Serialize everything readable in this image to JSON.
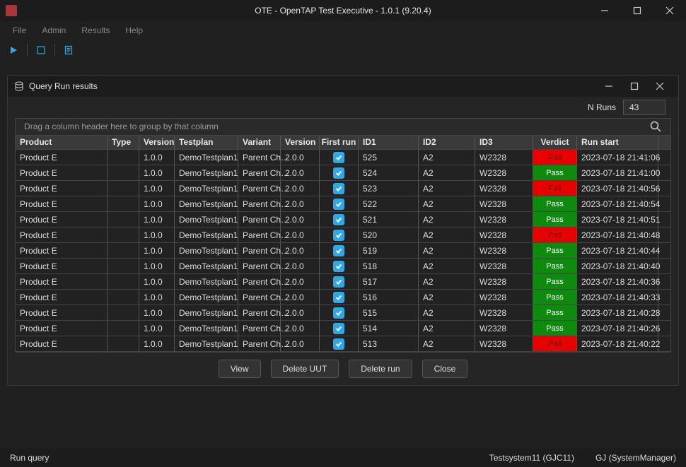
{
  "window": {
    "title": "OTE - OpenTAP Test Executive - 1.0.1  (9.20.4)"
  },
  "menus": [
    "File",
    "Admin",
    "Results",
    "Help"
  ],
  "inner": {
    "title": "Query Run results",
    "nruns_label": "N Runs",
    "nruns_value": "43",
    "group_hint": "Drag a column header here to group by that column"
  },
  "columns": [
    "Product",
    "Type",
    "Version",
    "Testplan",
    "Variant",
    "Version",
    "First run",
    "ID1",
    "ID2",
    "ID3",
    "Verdict",
    "Run start"
  ],
  "verdict_colors": {
    "pass": "#0e8a0e",
    "fail": "#e80000"
  },
  "rows": [
    {
      "product": "Product E",
      "type": "",
      "v1": "1.0.0",
      "tplan": "DemoTestplan1",
      "variant": "Parent Ch…",
      "v2": "2.0.0",
      "first": true,
      "id1": "525",
      "id2": "A2",
      "id3": "W2328",
      "verdict": "Fail",
      "run": "2023-07-18 21:41:06"
    },
    {
      "product": "Product E",
      "type": "",
      "v1": "1.0.0",
      "tplan": "DemoTestplan1",
      "variant": "Parent Ch…",
      "v2": "2.0.0",
      "first": true,
      "id1": "524",
      "id2": "A2",
      "id3": "W2328",
      "verdict": "Pass",
      "run": "2023-07-18 21:41:00"
    },
    {
      "product": "Product E",
      "type": "",
      "v1": "1.0.0",
      "tplan": "DemoTestplan1",
      "variant": "Parent Ch…",
      "v2": "2.0.0",
      "first": true,
      "id1": "523",
      "id2": "A2",
      "id3": "W2328",
      "verdict": "Fail",
      "run": "2023-07-18 21:40:56"
    },
    {
      "product": "Product E",
      "type": "",
      "v1": "1.0.0",
      "tplan": "DemoTestplan1",
      "variant": "Parent Ch…",
      "v2": "2.0.0",
      "first": true,
      "id1": "522",
      "id2": "A2",
      "id3": "W2328",
      "verdict": "Pass",
      "run": "2023-07-18 21:40:54"
    },
    {
      "product": "Product E",
      "type": "",
      "v1": "1.0.0",
      "tplan": "DemoTestplan1",
      "variant": "Parent Ch…",
      "v2": "2.0.0",
      "first": true,
      "id1": "521",
      "id2": "A2",
      "id3": "W2328",
      "verdict": "Pass",
      "run": "2023-07-18 21:40:51"
    },
    {
      "product": "Product E",
      "type": "",
      "v1": "1.0.0",
      "tplan": "DemoTestplan1",
      "variant": "Parent Ch…",
      "v2": "2.0.0",
      "first": true,
      "id1": "520",
      "id2": "A2",
      "id3": "W2328",
      "verdict": "Fail",
      "run": "2023-07-18 21:40:48"
    },
    {
      "product": "Product E",
      "type": "",
      "v1": "1.0.0",
      "tplan": "DemoTestplan1",
      "variant": "Parent Ch…",
      "v2": "2.0.0",
      "first": true,
      "id1": "519",
      "id2": "A2",
      "id3": "W2328",
      "verdict": "Pass",
      "run": "2023-07-18 21:40:44"
    },
    {
      "product": "Product E",
      "type": "",
      "v1": "1.0.0",
      "tplan": "DemoTestplan1",
      "variant": "Parent Ch…",
      "v2": "2.0.0",
      "first": true,
      "id1": "518",
      "id2": "A2",
      "id3": "W2328",
      "verdict": "Pass",
      "run": "2023-07-18 21:40:40"
    },
    {
      "product": "Product E",
      "type": "",
      "v1": "1.0.0",
      "tplan": "DemoTestplan1",
      "variant": "Parent Ch…",
      "v2": "2.0.0",
      "first": true,
      "id1": "517",
      "id2": "A2",
      "id3": "W2328",
      "verdict": "Pass",
      "run": "2023-07-18 21:40:36"
    },
    {
      "product": "Product E",
      "type": "",
      "v1": "1.0.0",
      "tplan": "DemoTestplan1",
      "variant": "Parent Ch…",
      "v2": "2.0.0",
      "first": true,
      "id1": "516",
      "id2": "A2",
      "id3": "W2328",
      "verdict": "Pass",
      "run": "2023-07-18 21:40:33"
    },
    {
      "product": "Product E",
      "type": "",
      "v1": "1.0.0",
      "tplan": "DemoTestplan1",
      "variant": "Parent Ch…",
      "v2": "2.0.0",
      "first": true,
      "id1": "515",
      "id2": "A2",
      "id3": "W2328",
      "verdict": "Pass",
      "run": "2023-07-18 21:40:28"
    },
    {
      "product": "Product E",
      "type": "",
      "v1": "1.0.0",
      "tplan": "DemoTestplan1",
      "variant": "Parent Ch…",
      "v2": "2.0.0",
      "first": true,
      "id1": "514",
      "id2": "A2",
      "id3": "W2328",
      "verdict": "Pass",
      "run": "2023-07-18 21:40:26"
    },
    {
      "product": "Product E",
      "type": "",
      "v1": "1.0.0",
      "tplan": "DemoTestplan1",
      "variant": "Parent Ch…",
      "v2": "2.0.0",
      "first": true,
      "id1": "513",
      "id2": "A2",
      "id3": "W2328",
      "verdict": "Fail",
      "run": "2023-07-18 21:40:22"
    }
  ],
  "buttons": {
    "view": "View",
    "delete_uut": "Delete UUT",
    "delete_run": "Delete run",
    "close": "Close"
  },
  "status": {
    "left": "Run query",
    "sys": "Testsystem11 (GJC11)",
    "user": "GJ (SystemManager)"
  }
}
